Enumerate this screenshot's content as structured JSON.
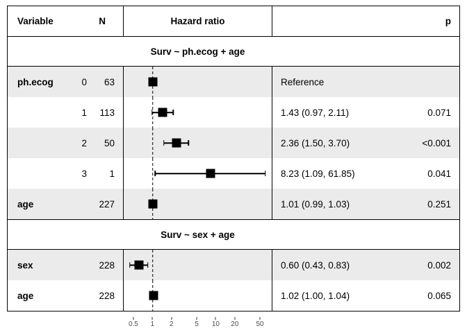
{
  "header": {
    "variable": "Variable",
    "n": "N",
    "hazard_ratio": "Hazard ratio",
    "p": "p"
  },
  "colors": {
    "row_shade": "#EBEBEB",
    "border": "#000000",
    "marker": "#000000",
    "axis_label": "#4d4d4d",
    "background": "#ffffff"
  },
  "chart_data": {
    "type": "forest",
    "x_scale": "log",
    "x_ticks": [
      0.5,
      1,
      2,
      5,
      10,
      20,
      50
    ],
    "x_range": [
      0.343,
      78.7
    ],
    "reference_line": 1,
    "sections": [
      {
        "title": "Surv ~ ph.ecog + age",
        "rows": [
          {
            "variable": "ph.ecog",
            "level": "0",
            "n": "63",
            "hr": 1.0,
            "low": null,
            "high": null,
            "estimate_label": "Reference",
            "p": ""
          },
          {
            "variable": "",
            "level": "1",
            "n": "113",
            "hr": 1.43,
            "low": 0.97,
            "high": 2.11,
            "estimate_label": "1.43 (0.97, 2.11)",
            "p": "0.071"
          },
          {
            "variable": "",
            "level": "2",
            "n": "50",
            "hr": 2.36,
            "low": 1.5,
            "high": 3.7,
            "estimate_label": "2.36 (1.50, 3.70)",
            "p": "<0.001"
          },
          {
            "variable": "",
            "level": "3",
            "n": "1",
            "hr": 8.23,
            "low": 1.09,
            "high": 61.85,
            "estimate_label": "8.23 (1.09, 61.85)",
            "p": "0.041"
          },
          {
            "variable": "age",
            "level": "",
            "n": "227",
            "hr": 1.01,
            "low": 0.99,
            "high": 1.03,
            "estimate_label": "1.01 (0.99, 1.03)",
            "p": "0.251"
          }
        ]
      },
      {
        "title": "Surv ~ sex + age",
        "rows": [
          {
            "variable": "sex",
            "level": "",
            "n": "228",
            "hr": 0.6,
            "low": 0.43,
            "high": 0.83,
            "estimate_label": "0.60 (0.43, 0.83)",
            "p": "0.002"
          },
          {
            "variable": "age",
            "level": "",
            "n": "228",
            "hr": 1.02,
            "low": 1.0,
            "high": 1.04,
            "estimate_label": "1.02 (1.00, 1.04)",
            "p": "0.065"
          }
        ]
      }
    ]
  }
}
